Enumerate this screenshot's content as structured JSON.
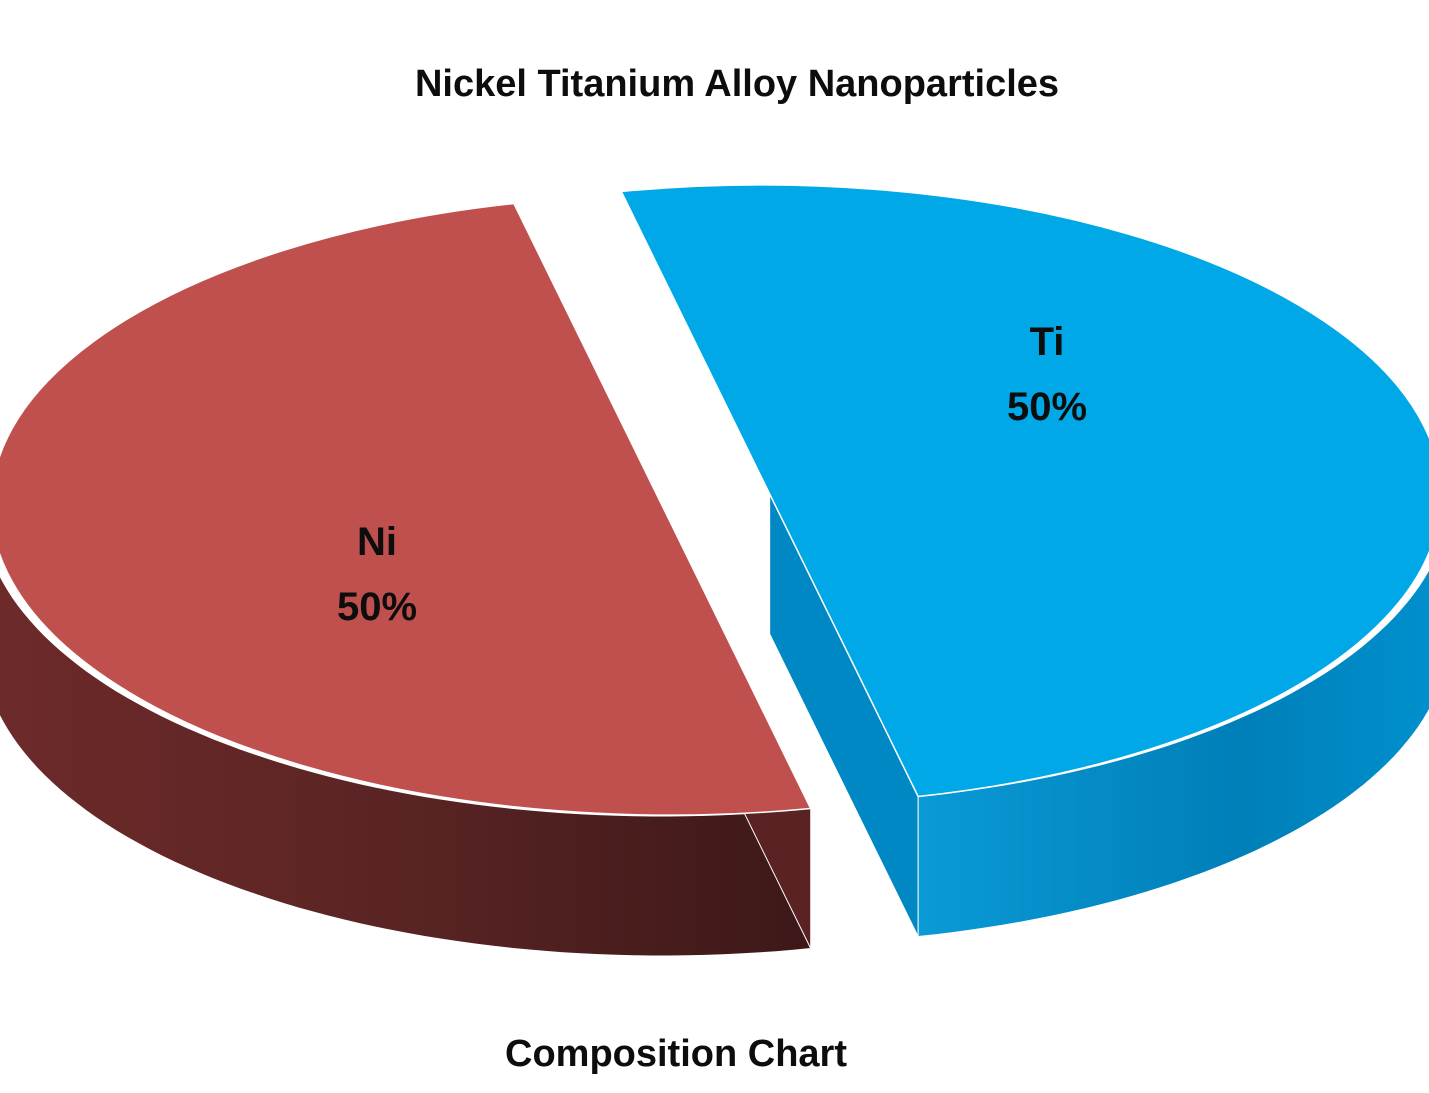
{
  "chart_data": {
    "type": "pie",
    "title": "Nickel Titanium Alloy Nanoparticles",
    "subtitle": "Composition Chart",
    "three_d": true,
    "exploded": true,
    "slices": [
      {
        "label": "Ni",
        "value": 50,
        "value_label": "50%",
        "color": "#00a8e8",
        "side_color": "#0088c4"
      },
      {
        "label": "Ti",
        "value": 50,
        "value_label": "50%",
        "color": "#c0504d",
        "side_color": "#5a2222"
      }
    ]
  }
}
